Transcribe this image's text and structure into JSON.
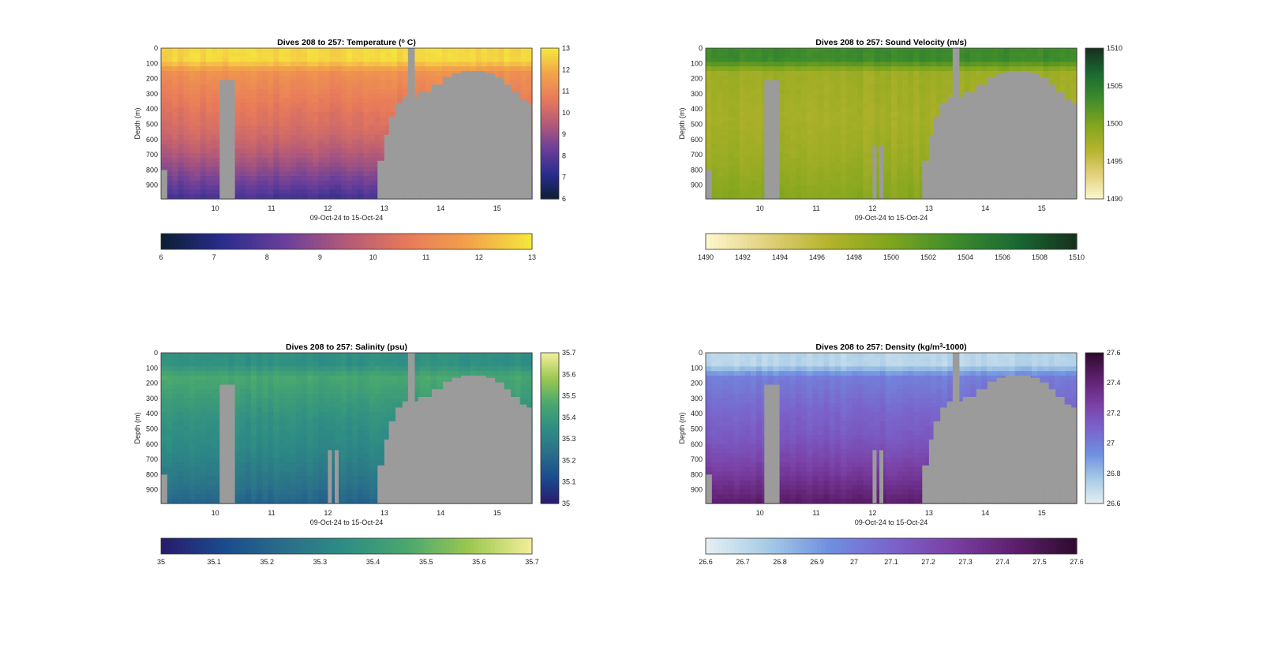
{
  "figure": {
    "colors": {
      "land": "#9b9b9b",
      "frame": "#333333",
      "background": "#ffffff"
    }
  },
  "chart_data": [
    {
      "type": "heatmap",
      "title": "Dives 208 to 257: Temperature (",
      "title_super": "o",
      "title_suffix": " C)",
      "ylabel": "Depth (m)",
      "xlabel": "09-Oct-24 to 15-Oct-24",
      "x_range": [
        9.04,
        15.62
      ],
      "x_ticks": [
        10,
        11,
        12,
        13,
        14,
        15
      ],
      "y_range": [
        0,
        990
      ],
      "y_ticks": [
        0,
        100,
        200,
        300,
        400,
        500,
        600,
        700,
        800,
        900
      ],
      "colorbar_range": [
        6,
        13
      ],
      "colorbar_ticks": [
        6,
        7,
        8,
        9,
        10,
        11,
        12,
        13
      ],
      "colormap": [
        "#0b1f33",
        "#2a2c8e",
        "#6a3f9a",
        "#b45a78",
        "#e87a5a",
        "#f3a34a",
        "#f5e83e"
      ],
      "profile": {
        "surface": 12.7,
        "upper": 11.3,
        "mid": 10.4,
        "deep": 7.6
      },
      "gaps": []
    },
    {
      "type": "heatmap",
      "title": "Dives 208 to 257: Sound Velocity (m/s)",
      "title_super": "",
      "title_suffix": "",
      "ylabel": "Depth (m)",
      "xlabel": "09-Oct-24 to 15-Oct-24",
      "x_range": [
        9.04,
        15.62
      ],
      "x_ticks": [
        10,
        11,
        12,
        13,
        14,
        15
      ],
      "y_range": [
        0,
        990
      ],
      "y_ticks": [
        0,
        100,
        200,
        300,
        400,
        500,
        600,
        700,
        800,
        900
      ],
      "colorbar_range": [
        1490,
        1510
      ],
      "colorbar_ticks": [
        1490,
        1492,
        1494,
        1496,
        1498,
        1500,
        1502,
        1504,
        1506,
        1508,
        1510
      ],
      "colorbar_side_ticks": [
        1490,
        1495,
        1500,
        1505,
        1510
      ],
      "colormap": [
        "#fdf8cf",
        "#e2d07a",
        "#b3b32b",
        "#7fa51d",
        "#3f8c2c",
        "#1a6a32",
        "#17301e"
      ],
      "profile": {
        "surface": 1503.5,
        "upper": 1498,
        "mid": 1497.5,
        "deep": 1499.5
      },
      "gaps": [
        12.0,
        12.12
      ]
    },
    {
      "type": "heatmap",
      "title": "Dives 208 to 257: Salinity (psu)",
      "title_super": "",
      "title_suffix": "",
      "ylabel": "Depth (m)",
      "xlabel": "09-Oct-24 to 15-Oct-24",
      "x_range": [
        9.04,
        15.62
      ],
      "x_ticks": [
        10,
        11,
        12,
        13,
        14,
        15
      ],
      "y_range": [
        0,
        990
      ],
      "y_ticks": [
        0,
        100,
        200,
        300,
        400,
        500,
        600,
        700,
        800,
        900
      ],
      "colorbar_range": [
        35,
        35.7
      ],
      "colorbar_ticks": [
        35,
        35.1,
        35.2,
        35.3,
        35.4,
        35.5,
        35.6,
        35.7
      ],
      "colormap": [
        "#2a1a6a",
        "#1a4a8e",
        "#2a6e8a",
        "#2e8e84",
        "#4aa86e",
        "#9cc850",
        "#f3ee9a"
      ],
      "profile": {
        "surface": 35.36,
        "upper": 35.46,
        "mid": 35.36,
        "deep": 35.2
      },
      "gaps": [
        12.0,
        12.12
      ]
    },
    {
      "type": "heatmap",
      "title": "Dives 208 to 257: Density (kg/m",
      "title_super": "3",
      "title_suffix": "-1000)",
      "ylabel": "Depth (m)",
      "xlabel": "09-Oct-24 to 15-Oct-24",
      "x_range": [
        9.04,
        15.62
      ],
      "x_ticks": [
        10,
        11,
        12,
        13,
        14,
        15
      ],
      "y_range": [
        0,
        990
      ],
      "y_ticks": [
        0,
        100,
        200,
        300,
        400,
        500,
        600,
        700,
        800,
        900
      ],
      "colorbar_range": [
        26.6,
        27.6
      ],
      "colorbar_ticks": [
        26.6,
        26.7,
        26.8,
        26.9,
        27,
        27.1,
        27.2,
        27.3,
        27.4,
        27.5,
        27.6
      ],
      "colorbar_side_ticks": [
        26.6,
        26.8,
        27,
        27.2,
        27.4,
        27.6
      ],
      "colormap": [
        "#e6f0f3",
        "#a6cbe6",
        "#6f8fe0",
        "#7a64cc",
        "#7a3fa4",
        "#5e1f6e",
        "#2e0a2e"
      ],
      "profile": {
        "surface": 26.72,
        "upper": 27.0,
        "mid": 27.12,
        "deep": 27.45
      },
      "gaps": [
        12.0,
        12.12
      ]
    }
  ]
}
